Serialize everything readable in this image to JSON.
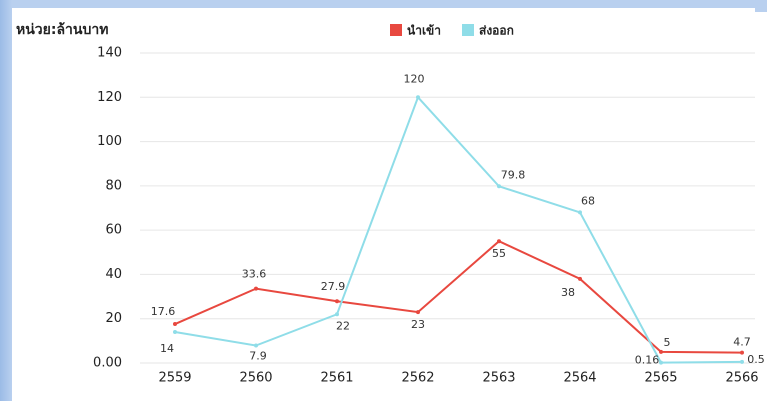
{
  "chart_data": {
    "type": "line",
    "y_axis_label": "หน่วย:ล้านบาท",
    "categories": [
      "2559",
      "2560",
      "2561",
      "2562",
      "2563",
      "2564",
      "2565",
      "2566"
    ],
    "series": [
      {
        "name": "นำเข้า",
        "color": "#e8483f",
        "values": [
          17.6,
          33.6,
          27.9,
          23,
          55,
          38,
          5,
          4.7
        ]
      },
      {
        "name": "ส่งออก",
        "color": "#8fdde8",
        "values": [
          14,
          7.9,
          22,
          120,
          79.8,
          68,
          0.16,
          0.5
        ]
      }
    ],
    "ylim": [
      0,
      140
    ],
    "yticks": [
      {
        "value": 0,
        "label": "0.00"
      },
      20,
      40,
      60,
      80,
      100,
      120,
      140
    ],
    "grid": true,
    "legend": "top"
  }
}
